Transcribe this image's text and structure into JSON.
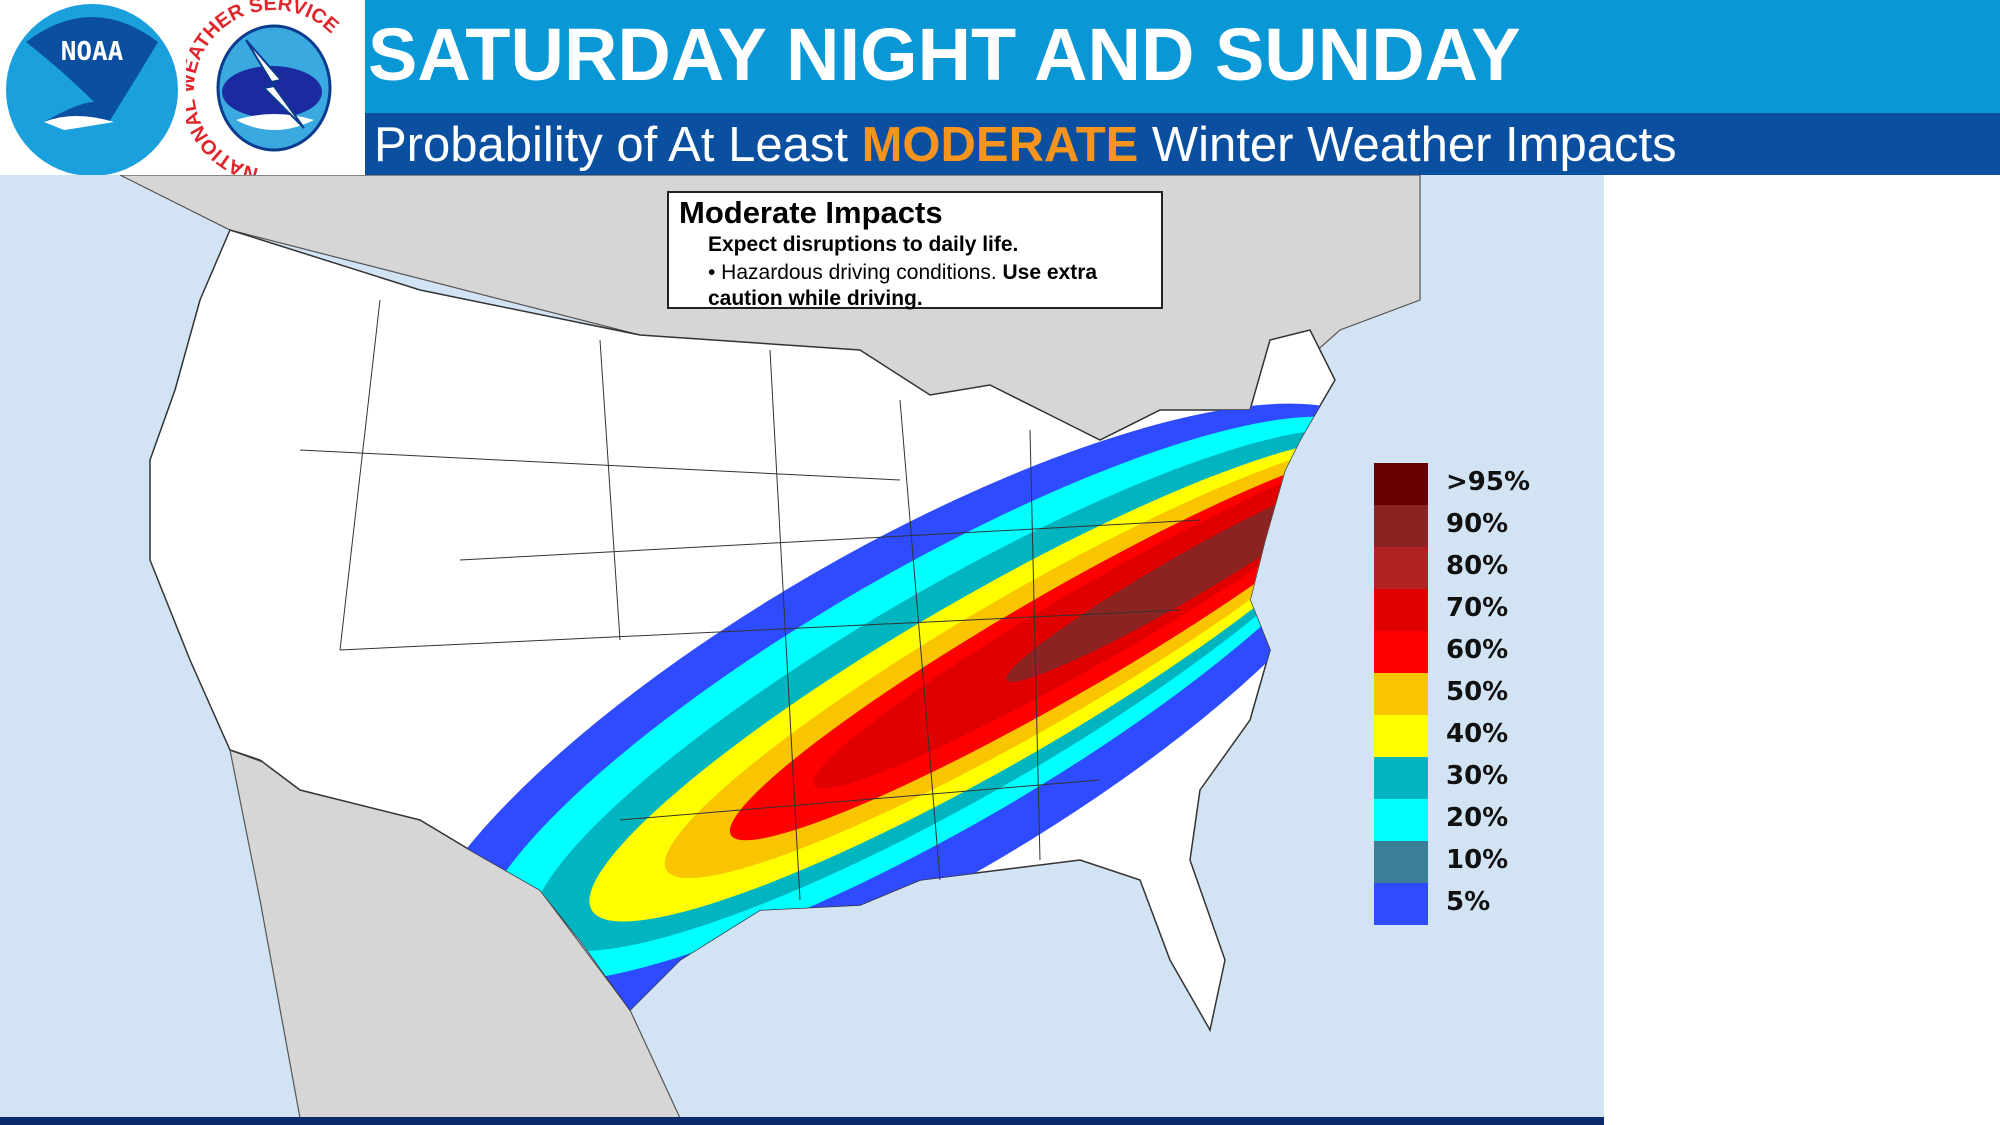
{
  "header": {
    "title": "SATURDAY NIGHT AND SUNDAY",
    "subtitle_pre": "Probability of At Least ",
    "subtitle_highlight": "MODERATE",
    "subtitle_post": " Winter Weather Impacts",
    "highlight_color": "#f7941d",
    "top_band_color": "#0a97d6",
    "sub_band_color": "#0b4fa0"
  },
  "logos": {
    "noaa": "NOAA",
    "nws": "NATIONAL WEATHER SERVICE"
  },
  "infobox": {
    "title": "Moderate Impacts",
    "line1": "Expect disruptions to daily life.",
    "line2_pre": "• Hazardous driving conditions. ",
    "line2_bold": "Use extra caution while driving."
  },
  "legend": [
    {
      "label": ">95%",
      "color": "#6b0000"
    },
    {
      "label": "90%",
      "color": "#8b2323"
    },
    {
      "label": "80%",
      "color": "#b22222"
    },
    {
      "label": "70%",
      "color": "#e00000"
    },
    {
      "label": "60%",
      "color": "#ff0000"
    },
    {
      "label": "50%",
      "color": "#f9c400"
    },
    {
      "label": "40%",
      "color": "#ffff00"
    },
    {
      "label": "30%",
      "color": "#00b4c0"
    },
    {
      "label": "20%",
      "color": "#00ffff"
    },
    {
      "label": "10%",
      "color": "#3a7f96"
    },
    {
      "label": "5%",
      "color": "#2f4bff"
    }
  ]
}
